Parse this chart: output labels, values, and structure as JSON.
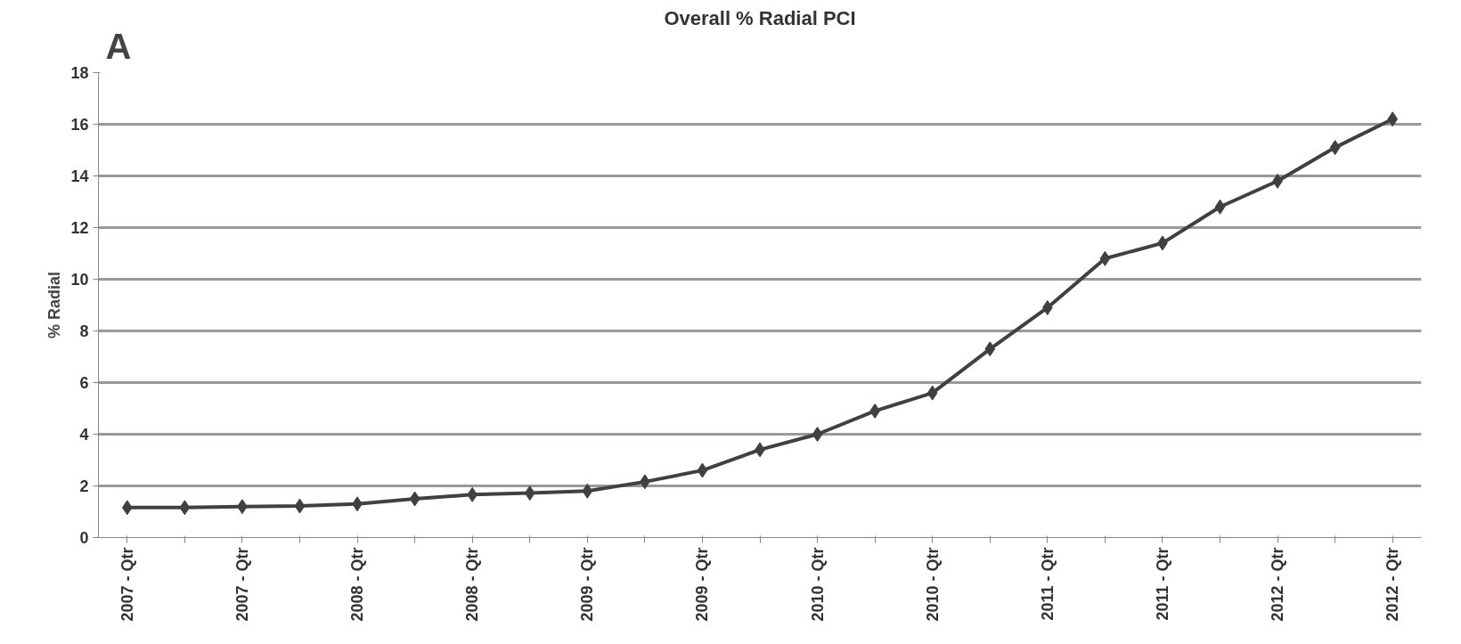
{
  "chart_data": {
    "type": "line",
    "title": "Overall % Radial PCI",
    "ylabel": "% Radial",
    "annotations": [
      "A"
    ],
    "categories": [
      "2007 - Qtr",
      null,
      "2007 - Qtr",
      null,
      "2008 - Qtr",
      null,
      "2008 - Qtr",
      null,
      "2009 - Qtr",
      null,
      "2009 - Qtr",
      null,
      "2010 - Qtr",
      null,
      "2010 - Qtr",
      null,
      "2011 - Qtr",
      null,
      "2011 - Qtr",
      null,
      "2012 - Qtr",
      null,
      "2012 - Qtr"
    ],
    "series": [
      {
        "color": "#404040",
        "values": [
          1.16,
          1.16,
          1.2,
          1.22,
          1.3,
          1.5,
          1.66,
          1.72,
          1.8,
          2.16,
          2.6,
          3.4,
          4.0,
          4.9,
          5.6,
          7.3,
          8.9,
          10.8,
          11.4,
          12.8,
          13.8,
          15.1,
          16.2
        ]
      }
    ],
    "ylim": [
      0,
      18
    ],
    "yticks": [
      0,
      2,
      4,
      6,
      8,
      10,
      12,
      14,
      16,
      18
    ],
    "grid": "y",
    "marker": "diamond",
    "line_style": "solid"
  }
}
